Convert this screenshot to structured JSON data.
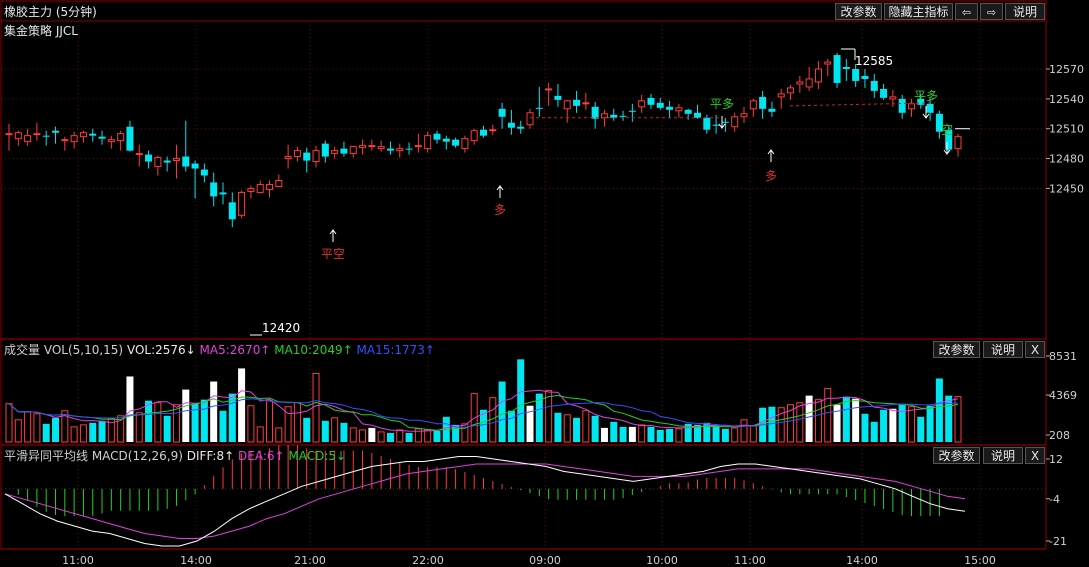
{
  "header": {
    "title": "橡胶主力 (5分钟)",
    "subtitle": "集金策略 JJCL",
    "buttons": {
      "params": "改参数",
      "hide_indicator": "隐藏主指标",
      "back": "⇦",
      "forward": "⇨",
      "help": "说明"
    }
  },
  "main": {
    "y_ticks": [
      "12570",
      "12540",
      "12510",
      "12480",
      "12450"
    ],
    "high_label": "12585",
    "low_label": "12420",
    "last_price_line": "12510",
    "signals": [
      {
        "text": "平空",
        "color": "#e03030"
      },
      {
        "text": "多",
        "color": "#e03030"
      },
      {
        "text": "平多",
        "color": "#22d022"
      },
      {
        "text": "多",
        "color": "#e03030"
      },
      {
        "text": "平多",
        "color": "#22d022"
      },
      {
        "text": "空",
        "color": "#22d022"
      }
    ],
    "colors": {
      "up": "#ff3b3b",
      "down": "#00e6f0",
      "up_fill": "#000000"
    }
  },
  "volume": {
    "label": "成交量 VOL(5,10,15)",
    "vol": "VOL:2576↓",
    "ma5": "MA5:2670↑",
    "ma10": "MA10:2049↑",
    "ma15": "MA15:1773↑",
    "colors": {
      "ma5": "#e040e0",
      "ma10": "#20d020",
      "ma15": "#3050ff"
    },
    "buttons": {
      "params": "改参数",
      "help": "说明",
      "close": "X"
    },
    "y_ticks": [
      "8531",
      "4369",
      "208"
    ]
  },
  "macd": {
    "label": "平滑异同平均线 MACD(12,26,9)",
    "diff": "DIFF:8↑",
    "dea": "DEA:6↑",
    "macd": "MACD:5↓",
    "colors": {
      "diff": "#ffffff",
      "dea": "#e040e0",
      "macd": "#20d020"
    },
    "buttons": {
      "params": "改参数",
      "help": "说明",
      "close": "X"
    },
    "y_ticks": [
      "12",
      "-4",
      "-21"
    ]
  },
  "x_axis": {
    "ticks": [
      "11:00",
      "14:00",
      "21:00",
      "22:00",
      "09:00",
      "10:00",
      "11:00",
      "14:00",
      "15:00"
    ]
  }
}
